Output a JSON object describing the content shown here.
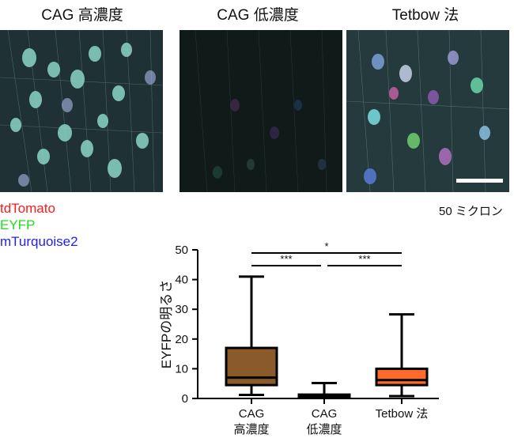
{
  "panels": [
    {
      "title": "CAG 高濃度"
    },
    {
      "title": "CAG 低濃度"
    },
    {
      "title": "Tetbow 法"
    }
  ],
  "legend": [
    {
      "label": "tdTomato",
      "color": "#ff1a1a"
    },
    {
      "label": "EYFP",
      "color": "#22dd22"
    },
    {
      "label": "mTurquoise2",
      "color": "#2222ee"
    }
  ],
  "scale_bar_label": "50 ミクロン",
  "chart_data": {
    "type": "box",
    "ylabel": "EYFPの明るさ",
    "ylim": [
      0,
      50
    ],
    "yticks": [
      0,
      10,
      20,
      30,
      40,
      50
    ],
    "categories": [
      {
        "lines": [
          "CAG",
          "高濃度"
        ]
      },
      {
        "lines": [
          "CAG",
          "低濃度"
        ]
      },
      {
        "lines": [
          "Tetbow 法"
        ]
      }
    ],
    "boxes": [
      {
        "min": 1.2,
        "q1": 4.5,
        "median": 7,
        "q3": 17,
        "max": 41,
        "color": "#8b5a2b"
      },
      {
        "min": 0.2,
        "q1": 0.5,
        "median": 0.9,
        "q3": 1.3,
        "max": 5.2,
        "color": "#8b5a2b"
      },
      {
        "min": 0.8,
        "q1": 4.5,
        "median": 6.2,
        "q3": 10,
        "max": 28.3,
        "color": "#ff6a2a"
      }
    ],
    "significance": [
      {
        "from": 0,
        "to": 1,
        "label": "***"
      },
      {
        "from": 1,
        "to": 2,
        "label": "***"
      },
      {
        "from": 0,
        "to": 2,
        "label": "*"
      }
    ]
  }
}
